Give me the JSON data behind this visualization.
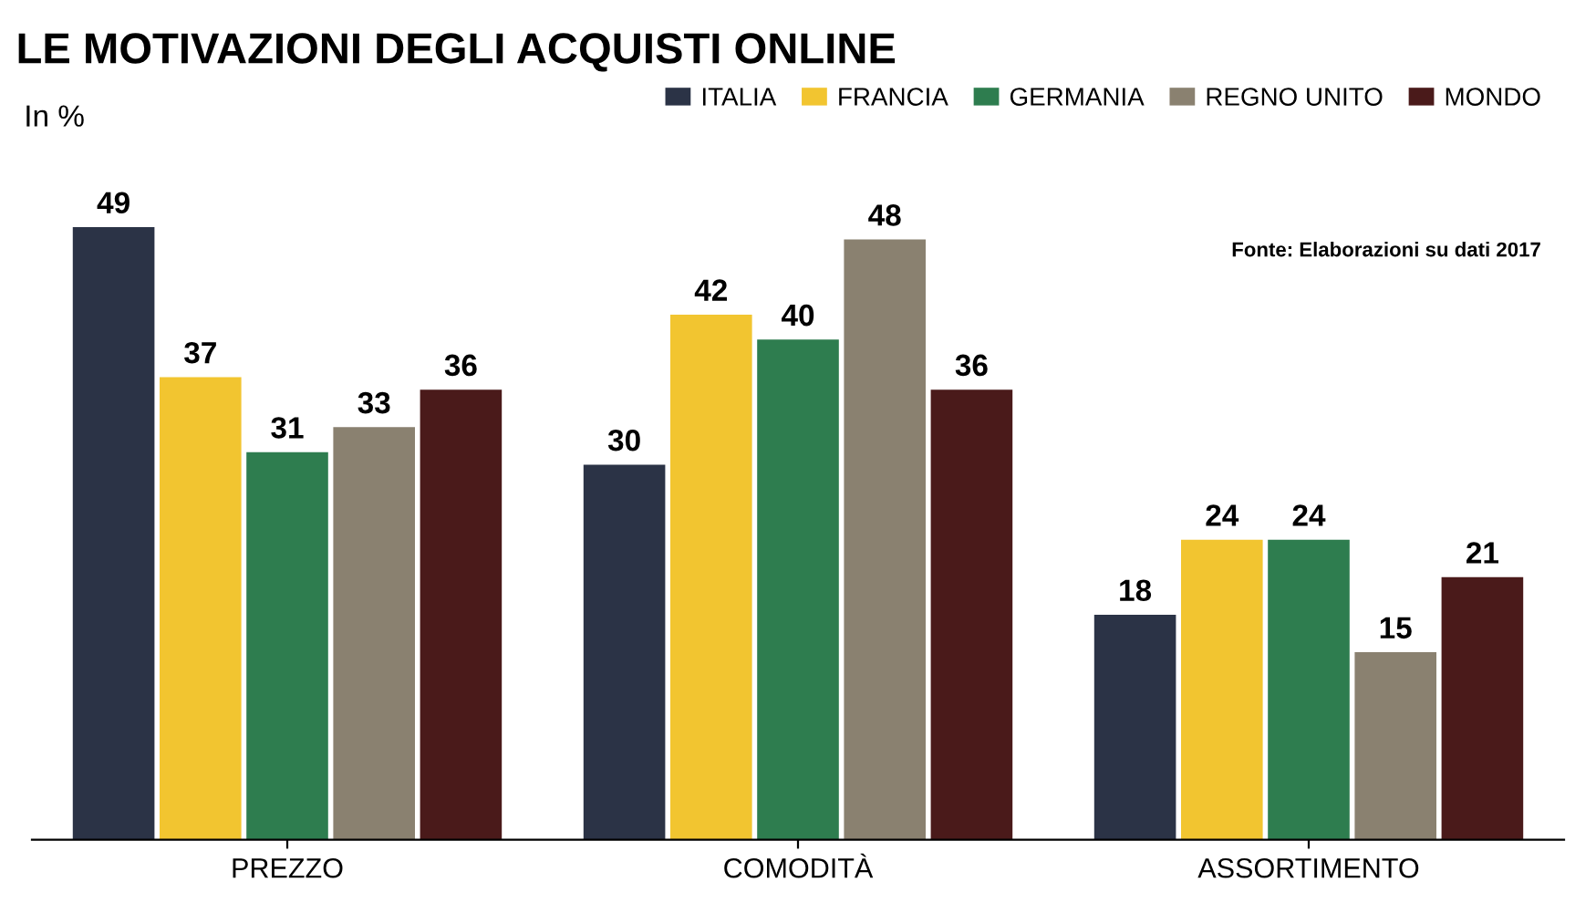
{
  "chart_data": {
    "type": "bar",
    "title": "LE MOTIVAZIONI DEGLI ACQUISTI ONLINE",
    "ylabel": "In %",
    "categories": [
      "PREZZO",
      "COMODITÀ",
      "ASSORTIMENTO"
    ],
    "series": [
      {
        "name": "ITALIA",
        "color": "#2b3346",
        "values": [
          49,
          30,
          18
        ]
      },
      {
        "name": "FRANCIA",
        "color": "#f2c530",
        "values": [
          37,
          42,
          24
        ]
      },
      {
        "name": "GERMANIA",
        "color": "#2e7d4f",
        "values": [
          31,
          40,
          24
        ]
      },
      {
        "name": "REGNO UNITO",
        "color": "#8a8170",
        "values": [
          33,
          48,
          15
        ]
      },
      {
        "name": "MONDO",
        "color": "#4a1a1a",
        "values": [
          36,
          36,
          21
        ]
      }
    ],
    "data_labels": true,
    "legend": "top right",
    "tick_labels": "x",
    "annotations": [
      "Fonte: Elaborazioni su dati 2017"
    ]
  }
}
